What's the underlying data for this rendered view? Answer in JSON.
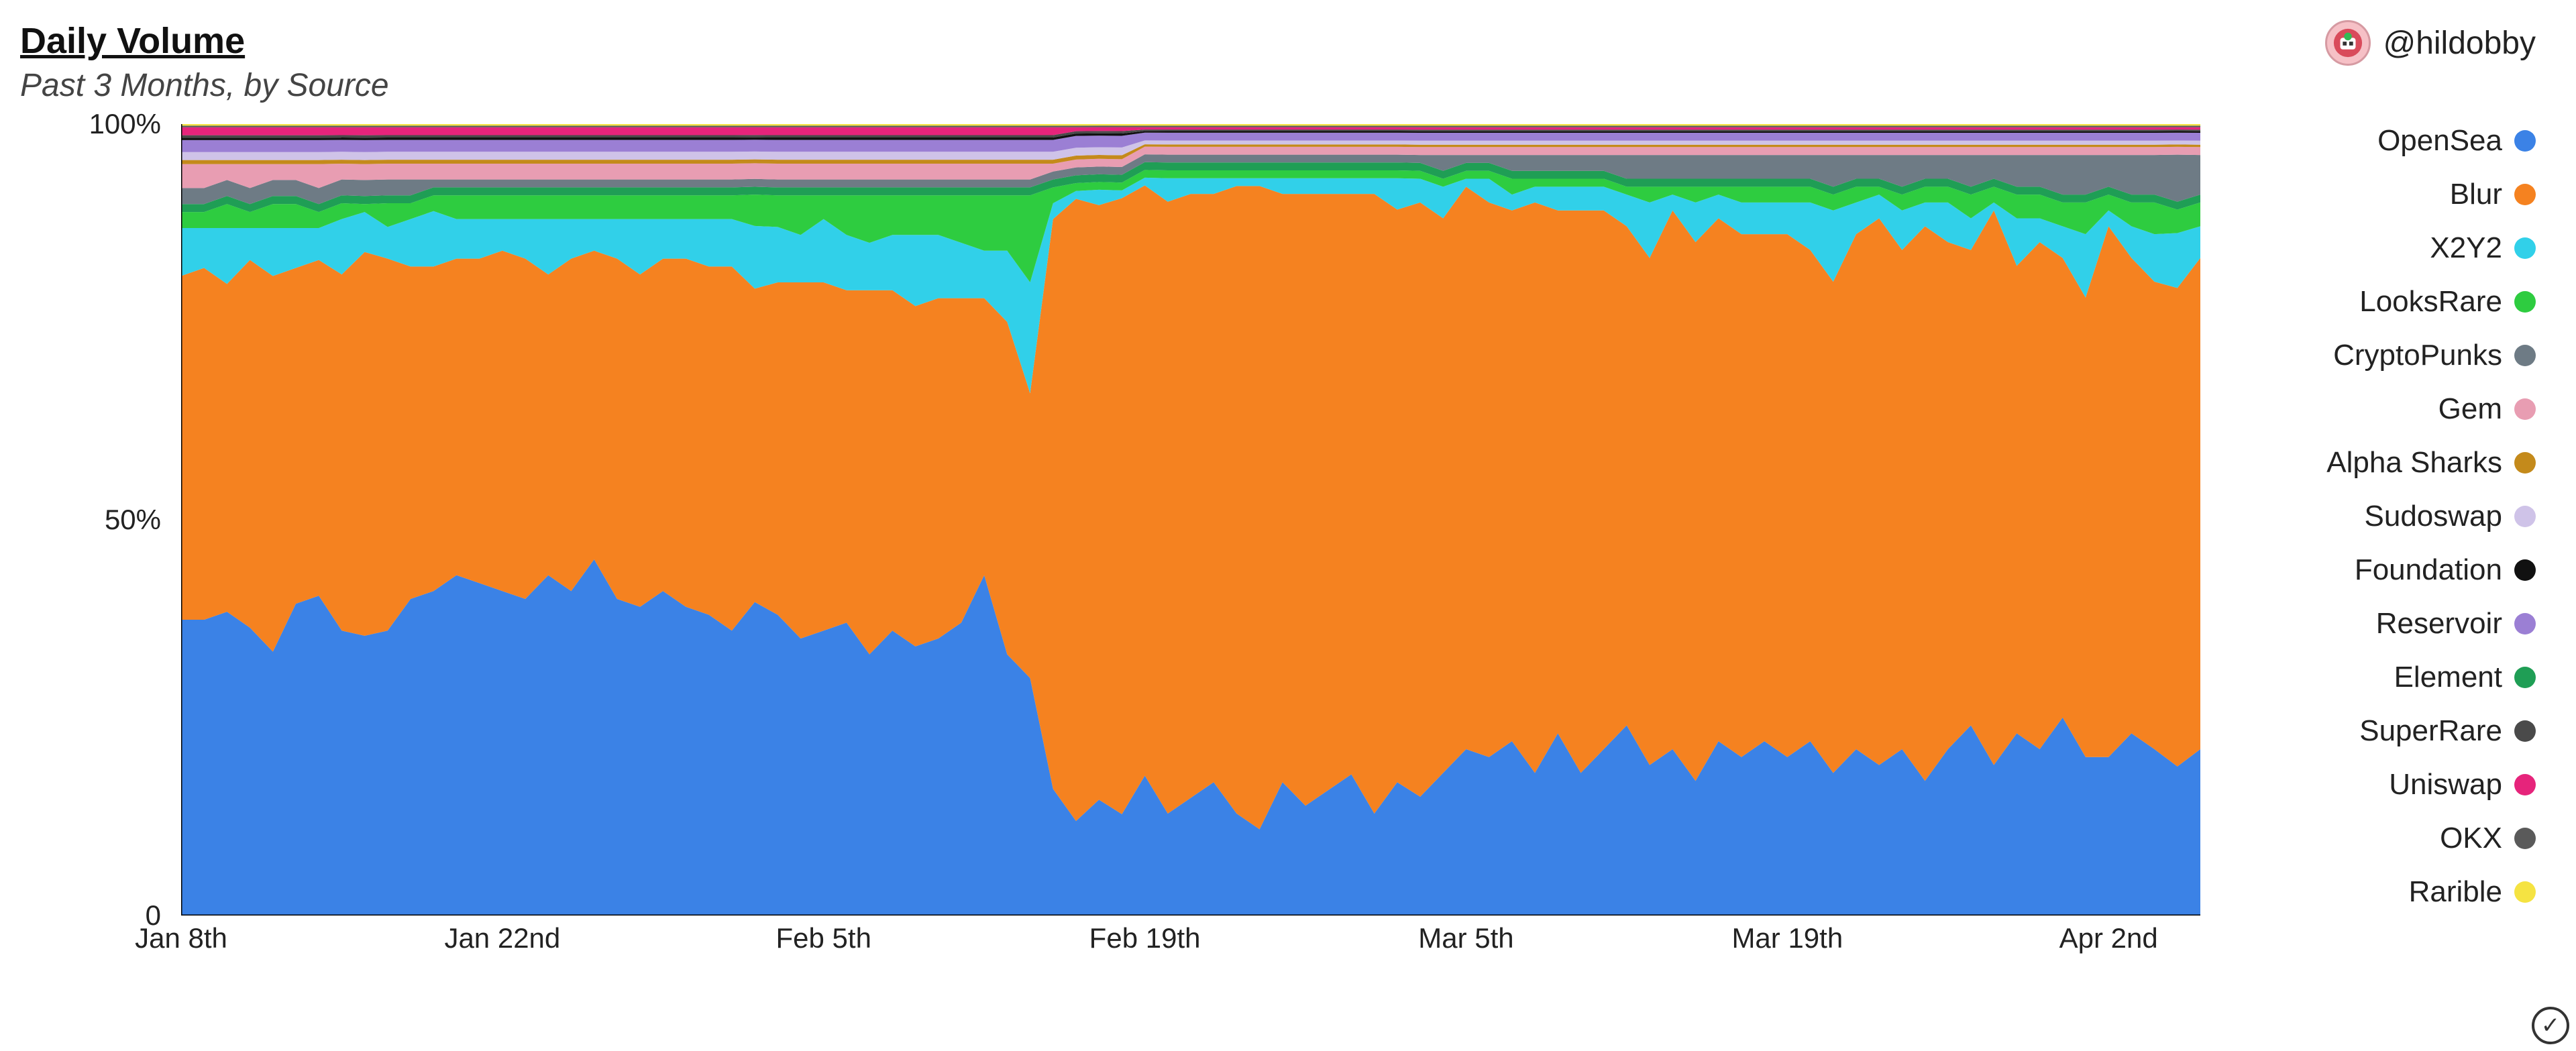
{
  "header": {
    "title": "Daily Volume",
    "subtitle": "Past 3 Months, by Source",
    "author_handle": "@hildobby"
  },
  "chart": {
    "type": "stacked-area-100pct",
    "background_color": "#ffffff",
    "axis_color": "#000000",
    "axis_stroke_width": 3,
    "label_fontsize": 42,
    "title_fontsize": 54,
    "subtitle_fontsize": 48,
    "legend_fontsize": 44,
    "ylim": [
      0,
      100
    ],
    "yticks": [
      {
        "v": 0,
        "label": "0"
      },
      {
        "v": 50,
        "label": "50%"
      },
      {
        "v": 100,
        "label": "100%"
      }
    ],
    "xticks": [
      {
        "i": 0,
        "label": "Jan 8th"
      },
      {
        "i": 14,
        "label": "Jan 22nd"
      },
      {
        "i": 28,
        "label": "Feb 5th"
      },
      {
        "i": 42,
        "label": "Feb 19th"
      },
      {
        "i": 56,
        "label": "Mar 5th"
      },
      {
        "i": 70,
        "label": "Mar 19th"
      },
      {
        "i": 84,
        "label": "Apr 2nd"
      }
    ],
    "n_points": 89,
    "legend_order": [
      "OpenSea",
      "Blur",
      "X2Y2",
      "LooksRare",
      "CryptoPunks",
      "Gem",
      "Alpha Sharks",
      "Sudoswap",
      "Foundation",
      "Reservoir",
      "Element",
      "SuperRare",
      "Uniswap",
      "OKX",
      "Rarible"
    ],
    "stack_order_bottom_to_top": [
      "OpenSea",
      "Blur",
      "X2Y2",
      "LooksRare",
      "Element",
      "CryptoPunks",
      "Gem",
      "Alpha Sharks",
      "Sudoswap",
      "Reservoir",
      "Foundation",
      "SuperRare",
      "Uniswap",
      "OKX",
      "Rarible"
    ],
    "colors": {
      "OpenSea": "#3b82e6",
      "Blur": "#f58220",
      "X2Y2": "#31d0e9",
      "LooksRare": "#2ecc40",
      "CryptoPunks": "#6e7b85",
      "Gem": "#e89db2",
      "Alpha Sharks": "#c48a1b",
      "Sudoswap": "#cfc3e8",
      "Foundation": "#111111",
      "Reservoir": "#9b7fd4",
      "Element": "#1f9e55",
      "SuperRare": "#4a4a4a",
      "Uniswap": "#e6247b",
      "OKX": "#5a5a5a",
      "Rarible": "#f5e342"
    },
    "series": {
      "OpenSea": [
        37,
        37,
        38,
        36,
        33,
        39,
        40,
        36,
        35,
        36,
        40,
        41,
        43,
        42,
        41,
        40,
        43,
        41,
        45,
        40,
        39,
        41,
        39,
        38,
        36,
        40,
        38,
        35,
        36,
        37,
        33,
        36,
        34,
        35,
        37,
        43,
        33,
        30,
        16,
        12,
        15,
        13,
        18,
        13,
        15,
        17,
        13,
        11,
        17,
        14,
        16,
        18,
        13,
        17,
        15,
        18,
        21,
        20,
        22,
        18,
        23,
        18,
        21,
        24,
        19,
        21,
        17,
        22,
        20,
        22,
        20,
        22,
        18,
        21,
        19,
        21,
        17,
        21,
        24,
        19,
        23,
        21,
        25,
        20,
        20,
        23,
        21,
        19,
        21
      ],
      "Blur": [
        43,
        44,
        41,
        46,
        47,
        42,
        42,
        45,
        48,
        47,
        42,
        41,
        40,
        41,
        43,
        43,
        38,
        42,
        39,
        43,
        42,
        42,
        44,
        44,
        46,
        40,
        42,
        45,
        44,
        42,
        46,
        43,
        43,
        43,
        41,
        35,
        42,
        36,
        72,
        79,
        77,
        79,
        76,
        78,
        77,
        75,
        80,
        82,
        75,
        78,
        76,
        74,
        79,
        73,
        75,
        70,
        71,
        70,
        67,
        72,
        66,
        71,
        68,
        63,
        64,
        68,
        68,
        66,
        66,
        64,
        66,
        62,
        62,
        65,
        69,
        63,
        70,
        64,
        60,
        70,
        59,
        64,
        58,
        58,
        67,
        60,
        59,
        61,
        62
      ],
      "X2Y2": [
        6,
        5,
        7,
        4,
        6,
        5,
        4,
        7,
        5,
        4,
        6,
        7,
        5,
        5,
        4,
        5,
        7,
        5,
        4,
        5,
        7,
        5,
        5,
        6,
        6,
        8,
        7,
        6,
        8,
        7,
        6,
        7,
        9,
        8,
        7,
        6,
        9,
        14,
        2,
        1,
        2,
        1,
        1,
        3,
        2,
        2,
        1,
        1,
        2,
        2,
        2,
        2,
        2,
        4,
        3,
        4,
        1,
        3,
        2,
        2,
        3,
        3,
        3,
        4,
        7,
        2,
        5,
        3,
        4,
        4,
        4,
        6,
        9,
        4,
        3,
        5,
        3,
        5,
        4,
        1,
        6,
        3,
        4,
        8,
        2,
        4,
        6,
        7,
        4
      ],
      "LooksRare": [
        2,
        2,
        3,
        2,
        3,
        3,
        2,
        2,
        1,
        3,
        2,
        2,
        3,
        3,
        3,
        3,
        3,
        3,
        3,
        3,
        3,
        3,
        3,
        3,
        3,
        4,
        4,
        5,
        3,
        5,
        6,
        5,
        5,
        5,
        6,
        7,
        7,
        11,
        2,
        1,
        1,
        1,
        1,
        1,
        1,
        1,
        1,
        1,
        1,
        1,
        1,
        1,
        1,
        1,
        1,
        1,
        1,
        1,
        2,
        1,
        1,
        1,
        1,
        1,
        2,
        1,
        2,
        1,
        2,
        2,
        2,
        2,
        2,
        2,
        1,
        2,
        2,
        2,
        3,
        2,
        3,
        3,
        3,
        4,
        2,
        3,
        4,
        3,
        3
      ],
      "Element": [
        1,
        1,
        1,
        1,
        1,
        1,
        1,
        1,
        1,
        1,
        1,
        1,
        1,
        1,
        1,
        1,
        1,
        1,
        1,
        1,
        1,
        1,
        1,
        1,
        1,
        1,
        1,
        1,
        1,
        1,
        1,
        1,
        1,
        1,
        1,
        1,
        1,
        1,
        1,
        1,
        1,
        1,
        1,
        1,
        1,
        1,
        1,
        1,
        1,
        1,
        1,
        1,
        1,
        1,
        1,
        1,
        1,
        1,
        1,
        1,
        1,
        1,
        1,
        1,
        1,
        1,
        1,
        1,
        1,
        1,
        1,
        1,
        1,
        1,
        1,
        1,
        1,
        1,
        1,
        1,
        1,
        1,
        1,
        1,
        1,
        1,
        1,
        1,
        1
      ],
      "CryptoPunks": [
        2,
        2,
        2,
        2,
        2,
        2,
        2,
        2,
        2,
        2,
        2,
        1,
        1,
        1,
        1,
        1,
        1,
        1,
        1,
        1,
        1,
        1,
        1,
        1,
        1,
        1,
        1,
        1,
        1,
        1,
        1,
        1,
        1,
        1,
        1,
        1,
        1,
        1,
        1,
        1,
        1,
        1,
        1,
        1,
        1,
        1,
        1,
        1,
        1,
        1,
        1,
        1,
        1,
        1,
        1,
        2,
        1,
        1,
        2,
        2,
        2,
        2,
        2,
        3,
        3,
        3,
        3,
        3,
        3,
        3,
        3,
        3,
        4,
        3,
        3,
        4,
        3,
        3,
        4,
        3,
        4,
        4,
        5,
        5,
        4,
        5,
        5,
        6,
        5
      ],
      "Gem": [
        3,
        3,
        2,
        3,
        2,
        2,
        3,
        2,
        2,
        2,
        2,
        2,
        2,
        2,
        2,
        2,
        2,
        2,
        2,
        2,
        2,
        2,
        2,
        2,
        2,
        2,
        2,
        2,
        2,
        2,
        2,
        2,
        2,
        2,
        2,
        2,
        2,
        2,
        1,
        1,
        1,
        1,
        1,
        1,
        1,
        1,
        1,
        1,
        1,
        1,
        1,
        1,
        1,
        1,
        1,
        1,
        1,
        1,
        1,
        1,
        1,
        1,
        1,
        1,
        1,
        1,
        1,
        1,
        1,
        1,
        1,
        1,
        1,
        1,
        1,
        1,
        1,
        1,
        1,
        1,
        1,
        1,
        1,
        1,
        1,
        1,
        1,
        1,
        1
      ],
      "Alpha Sharks": [
        0.5,
        0.5,
        0.5,
        0.5,
        0.5,
        0.5,
        0.5,
        0.5,
        0.5,
        0.5,
        0.5,
        0.5,
        0.5,
        0.5,
        0.5,
        0.5,
        0.5,
        0.5,
        0.5,
        0.5,
        0.5,
        0.5,
        0.5,
        0.5,
        0.5,
        0.5,
        0.5,
        0.5,
        0.5,
        0.5,
        0.5,
        0.5,
        0.5,
        0.5,
        0.5,
        0.5,
        0.5,
        0.5,
        0.5,
        0.5,
        0.5,
        0.5,
        0.3,
        0.3,
        0.3,
        0.3,
        0.3,
        0.3,
        0.3,
        0.3,
        0.3,
        0.3,
        0.3,
        0.3,
        0.3,
        0.3,
        0.3,
        0.3,
        0.3,
        0.3,
        0.3,
        0.3,
        0.3,
        0.3,
        0.3,
        0.3,
        0.3,
        0.3,
        0.3,
        0.3,
        0.3,
        0.3,
        0.3,
        0.3,
        0.3,
        0.3,
        0.3,
        0.3,
        0.3,
        0.3,
        0.3,
        0.3,
        0.3,
        0.3,
        0.3,
        0.3,
        0.3,
        0.3,
        0.3
      ],
      "Sudoswap": [
        1,
        1,
        1,
        1,
        1,
        1,
        1,
        1,
        1,
        1,
        1,
        1,
        1,
        1,
        1,
        1,
        1,
        1,
        1,
        1,
        1,
        1,
        1,
        1,
        1,
        1,
        1,
        1,
        1,
        1,
        1,
        1,
        1,
        1,
        1,
        1,
        1,
        1,
        1,
        1,
        1,
        1,
        0.5,
        0.5,
        0.5,
        0.5,
        0.5,
        0.5,
        0.5,
        0.5,
        0.5,
        0.5,
        0.5,
        0.5,
        0.5,
        0.5,
        0.5,
        0.5,
        0.5,
        0.5,
        0.5,
        0.5,
        0.5,
        0.5,
        0.5,
        0.5,
        0.5,
        0.5,
        0.5,
        0.5,
        0.5,
        0.5,
        0.5,
        0.5,
        0.5,
        0.5,
        0.5,
        0.5,
        0.5,
        0.5,
        0.5,
        0.5,
        0.5,
        0.5,
        0.5,
        0.5,
        0.5,
        0.5,
        0.5
      ],
      "Reservoir": [
        1.5,
        1.5,
        1.5,
        1.5,
        1.5,
        1.5,
        1.5,
        1.5,
        1.5,
        1.5,
        1.5,
        1.5,
        1.5,
        1.5,
        1.5,
        1.5,
        1.5,
        1.5,
        1.5,
        1.5,
        1.5,
        1.5,
        1.5,
        1.5,
        1.5,
        1.5,
        1.5,
        1.5,
        1.5,
        1.5,
        1.5,
        1.5,
        1.5,
        1.5,
        1.5,
        1.5,
        1.5,
        1.5,
        1.5,
        1.5,
        1.5,
        1.5,
        1,
        1,
        1,
        1,
        1,
        1,
        1,
        1,
        1,
        1,
        1,
        1,
        1,
        1,
        1,
        1,
        1,
        1,
        1,
        1,
        1,
        1,
        1,
        1,
        1,
        1,
        1,
        1,
        1,
        1,
        1,
        1,
        1,
        1,
        1,
        1,
        1,
        1,
        1,
        1,
        1,
        1,
        1,
        1,
        1,
        1,
        1
      ],
      "Foundation": [
        0.3,
        0.3,
        0.3,
        0.3,
        0.3,
        0.3,
        0.3,
        0.3,
        0.3,
        0.3,
        0.3,
        0.3,
        0.3,
        0.3,
        0.3,
        0.3,
        0.3,
        0.3,
        0.3,
        0.3,
        0.3,
        0.3,
        0.3,
        0.3,
        0.3,
        0.3,
        0.3,
        0.3,
        0.3,
        0.3,
        0.3,
        0.3,
        0.3,
        0.3,
        0.3,
        0.3,
        0.3,
        0.3,
        0.3,
        0.3,
        0.3,
        0.3,
        0.2,
        0.2,
        0.2,
        0.2,
        0.2,
        0.2,
        0.2,
        0.2,
        0.2,
        0.2,
        0.2,
        0.2,
        0.2,
        0.2,
        0.2,
        0.2,
        0.2,
        0.2,
        0.2,
        0.2,
        0.2,
        0.2,
        0.2,
        0.2,
        0.2,
        0.2,
        0.2,
        0.2,
        0.2,
        0.2,
        0.2,
        0.2,
        0.2,
        0.2,
        0.2,
        0.2,
        0.2,
        0.2,
        0.2,
        0.2,
        0.2,
        0.2,
        0.2,
        0.2,
        0.2,
        0.2,
        0.2
      ],
      "SuperRare": [
        0.3,
        0.3,
        0.3,
        0.3,
        0.3,
        0.3,
        0.3,
        0.3,
        0.3,
        0.3,
        0.3,
        0.3,
        0.3,
        0.3,
        0.3,
        0.3,
        0.3,
        0.3,
        0.3,
        0.3,
        0.3,
        0.3,
        0.3,
        0.3,
        0.3,
        0.3,
        0.3,
        0.3,
        0.3,
        0.3,
        0.3,
        0.3,
        0.3,
        0.3,
        0.3,
        0.3,
        0.3,
        0.3,
        0.3,
        0.3,
        0.3,
        0.3,
        0.2,
        0.2,
        0.2,
        0.2,
        0.2,
        0.2,
        0.2,
        0.2,
        0.2,
        0.2,
        0.2,
        0.2,
        0.2,
        0.2,
        0.2,
        0.2,
        0.2,
        0.2,
        0.2,
        0.2,
        0.2,
        0.2,
        0.2,
        0.2,
        0.2,
        0.2,
        0.2,
        0.2,
        0.2,
        0.2,
        0.2,
        0.2,
        0.2,
        0.2,
        0.2,
        0.2,
        0.2,
        0.2,
        0.2,
        0.2,
        0.2,
        0.2,
        0.2,
        0.2,
        0.2,
        0.2,
        0.2
      ],
      "Uniswap": [
        1,
        1,
        1,
        1,
        1,
        1,
        1,
        1,
        1,
        1,
        1,
        1,
        1,
        1,
        1,
        1,
        1,
        1,
        1,
        1,
        1,
        1,
        1,
        1,
        1,
        1,
        1,
        1,
        1,
        1,
        1,
        1,
        1,
        1,
        1,
        1,
        1,
        1,
        1,
        0.5,
        0.5,
        0.5,
        0.3,
        0.3,
        0.3,
        0.3,
        0.3,
        0.3,
        0.3,
        0.3,
        0.3,
        0.3,
        0.3,
        0.3,
        0.3,
        0.3,
        0.3,
        0.3,
        0.3,
        0.3,
        0.3,
        0.3,
        0.3,
        0.3,
        0.3,
        0.3,
        0.3,
        0.3,
        0.3,
        0.3,
        0.3,
        0.3,
        0.3,
        0.3,
        0.3,
        0.3,
        0.3,
        0.3,
        0.3,
        0.3,
        0.3,
        0.3,
        0.3,
        0.3,
        0.3,
        0.3,
        0.3,
        0.3,
        0.3
      ],
      "OKX": [
        0.2,
        0.2,
        0.2,
        0.2,
        0.2,
        0.2,
        0.2,
        0.2,
        0.2,
        0.2,
        0.2,
        0.2,
        0.2,
        0.2,
        0.2,
        0.2,
        0.2,
        0.2,
        0.2,
        0.2,
        0.2,
        0.2,
        0.2,
        0.2,
        0.2,
        0.2,
        0.2,
        0.2,
        0.2,
        0.2,
        0.2,
        0.2,
        0.2,
        0.2,
        0.2,
        0.2,
        0.2,
        0.2,
        0.2,
        0.2,
        0.2,
        0.2,
        0.2,
        0.2,
        0.2,
        0.2,
        0.2,
        0.2,
        0.2,
        0.2,
        0.2,
        0.2,
        0.2,
        0.2,
        0.2,
        0.2,
        0.2,
        0.2,
        0.2,
        0.2,
        0.2,
        0.2,
        0.2,
        0.2,
        0.2,
        0.2,
        0.2,
        0.2,
        0.2,
        0.2,
        0.2,
        0.2,
        0.2,
        0.2,
        0.2,
        0.2,
        0.2,
        0.2,
        0.2,
        0.2,
        0.2,
        0.2,
        0.2,
        0.2,
        0.2,
        0.2,
        0.2,
        0.2,
        0.2
      ],
      "Rarible": [
        0.2,
        0.2,
        0.2,
        0.2,
        0.2,
        0.2,
        0.2,
        0.2,
        0.2,
        0.2,
        0.2,
        0.2,
        0.2,
        0.2,
        0.2,
        0.2,
        0.2,
        0.2,
        0.2,
        0.2,
        0.2,
        0.2,
        0.2,
        0.2,
        0.2,
        0.2,
        0.2,
        0.2,
        0.2,
        0.2,
        0.2,
        0.2,
        0.2,
        0.2,
        0.2,
        0.2,
        0.2,
        0.2,
        0.2,
        0.2,
        0.2,
        0.2,
        0.2,
        0.2,
        0.2,
        0.2,
        0.2,
        0.2,
        0.2,
        0.2,
        0.2,
        0.2,
        0.2,
        0.2,
        0.2,
        0.2,
        0.2,
        0.2,
        0.2,
        0.2,
        0.2,
        0.2,
        0.2,
        0.2,
        0.2,
        0.2,
        0.2,
        0.2,
        0.2,
        0.2,
        0.2,
        0.2,
        0.2,
        0.2,
        0.2,
        0.2,
        0.2,
        0.2,
        0.2,
        0.2,
        0.2,
        0.2,
        0.2,
        0.2,
        0.2,
        0.2,
        0.2,
        0.2,
        0.2
      ]
    }
  }
}
